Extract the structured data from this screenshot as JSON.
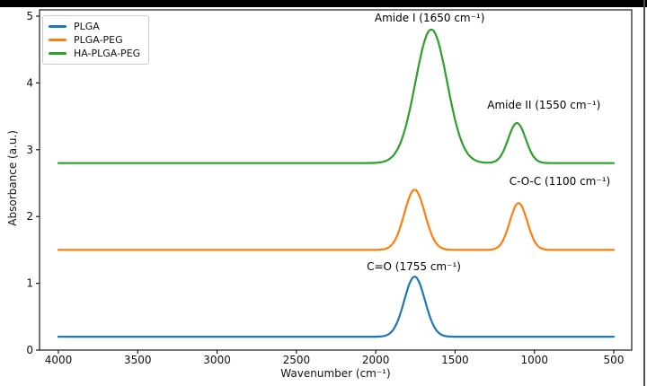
{
  "figure": {
    "background": "#ffffff",
    "top_bar_color": "#000000",
    "right_border_color": "#4d4d4d",
    "text_color": "#111111",
    "axis_color": "#1a1a1a"
  },
  "chart_data": {
    "type": "line",
    "title": "",
    "xlabel": "Wavenumber (cm⁻¹)",
    "ylabel": "Absorbance (a.u.)",
    "x_axis": {
      "min": 4000,
      "max": 500,
      "inverted": true,
      "ticks": [
        4000,
        3500,
        3000,
        2500,
        2000,
        1500,
        1000,
        500
      ]
    },
    "y_axis": {
      "min": 0,
      "max": 5.1,
      "ticks": [
        0,
        1,
        2,
        3,
        4,
        5
      ]
    },
    "grid": false,
    "legend": {
      "position": "upper left"
    },
    "series": [
      {
        "name": "PLGA",
        "color": "#1f77b4",
        "baseline": 0.2,
        "peaks": [
          {
            "center": 1755,
            "amplitude": 0.9,
            "sigma": 65
          }
        ]
      },
      {
        "name": "PLGA-PEG",
        "color": "#ff7f0e",
        "baseline": 1.5,
        "peaks": [
          {
            "center": 1755,
            "amplitude": 0.9,
            "sigma": 65
          },
          {
            "center": 1100,
            "amplitude": 0.7,
            "sigma": 55
          }
        ]
      },
      {
        "name": "HA-PLGA-PEG",
        "color": "#2ca02c",
        "baseline": 2.8,
        "peaks": [
          {
            "center": 1650,
            "amplitude": 2.0,
            "sigma": 100
          },
          {
            "center": 1110,
            "amplitude": 0.6,
            "sigma": 55
          }
        ]
      }
    ],
    "annotations": [
      {
        "text": "Amide I (1650 cm⁻¹)",
        "x": 1660,
        "y": 4.97
      },
      {
        "text": "Amide II (1550 cm⁻¹)",
        "x": 940,
        "y": 3.67
      },
      {
        "text": "C-O-C (1100 cm⁻¹)",
        "x": 840,
        "y": 2.53
      },
      {
        "text": "C=O (1755 cm⁻¹)",
        "x": 1760,
        "y": 1.25
      }
    ]
  }
}
